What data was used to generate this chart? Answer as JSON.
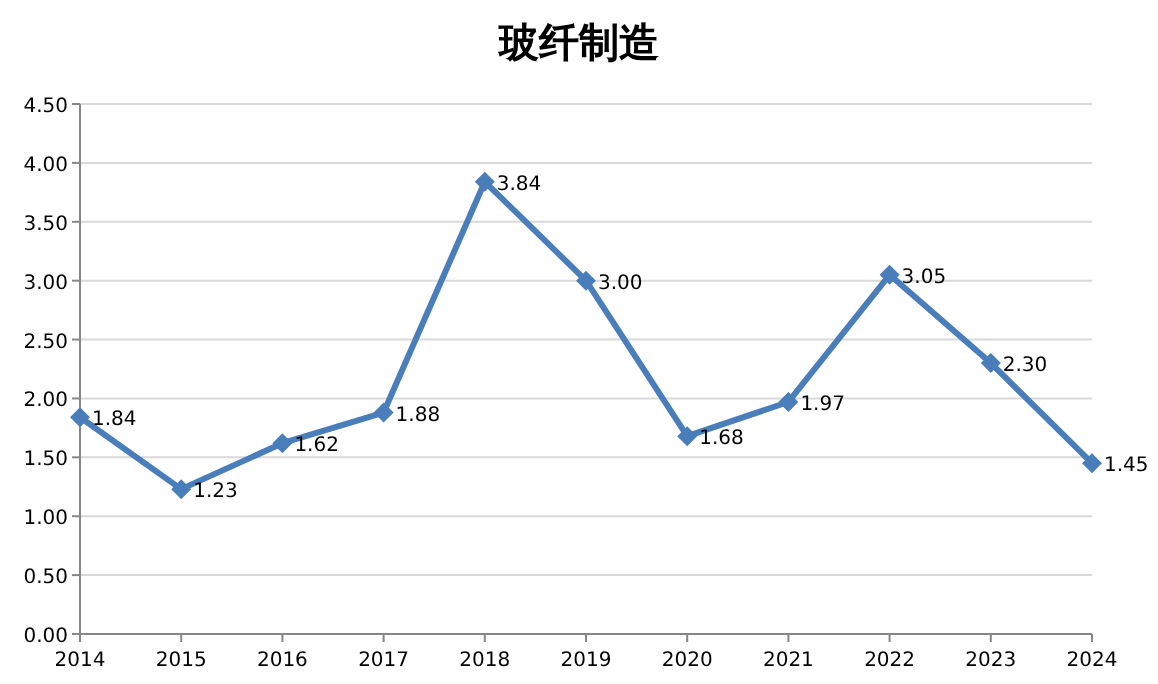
{
  "chart_data": {
    "type": "line",
    "title": "玻纤制造",
    "categories": [
      "2014",
      "2015",
      "2016",
      "2017",
      "2018",
      "2019",
      "2020",
      "2021",
      "2022",
      "2023",
      "2024"
    ],
    "series": [
      {
        "color": "#4a7ebb",
        "values": [
          1.84,
          1.23,
          1.62,
          1.88,
          3.84,
          3.0,
          1.68,
          1.97,
          3.05,
          2.3,
          1.45
        ],
        "value_labels": [
          "1.84",
          "1.23",
          "1.62",
          "1.88",
          "3.84",
          "3.00",
          "1.68",
          "1.97",
          "3.05",
          "2.30",
          "1.45"
        ]
      }
    ],
    "ylim": [
      0,
      4.5
    ],
    "yticks": [
      {
        "value": 0,
        "label": "0.00"
      },
      {
        "value": 0.5,
        "label": "0.50"
      },
      {
        "value": 1,
        "label": "1.00"
      },
      {
        "value": 1.5,
        "label": "1.50"
      },
      {
        "value": 2,
        "label": "2.00"
      },
      {
        "value": 2.5,
        "label": "2.50"
      },
      {
        "value": 3,
        "label": "3.00"
      },
      {
        "value": 3.5,
        "label": "3.50"
      },
      {
        "value": 4,
        "label": "4.00"
      },
      {
        "value": 4.5,
        "label": "4.50"
      }
    ],
    "grid": "y",
    "marker": "diamond",
    "line_style": "solid"
  }
}
